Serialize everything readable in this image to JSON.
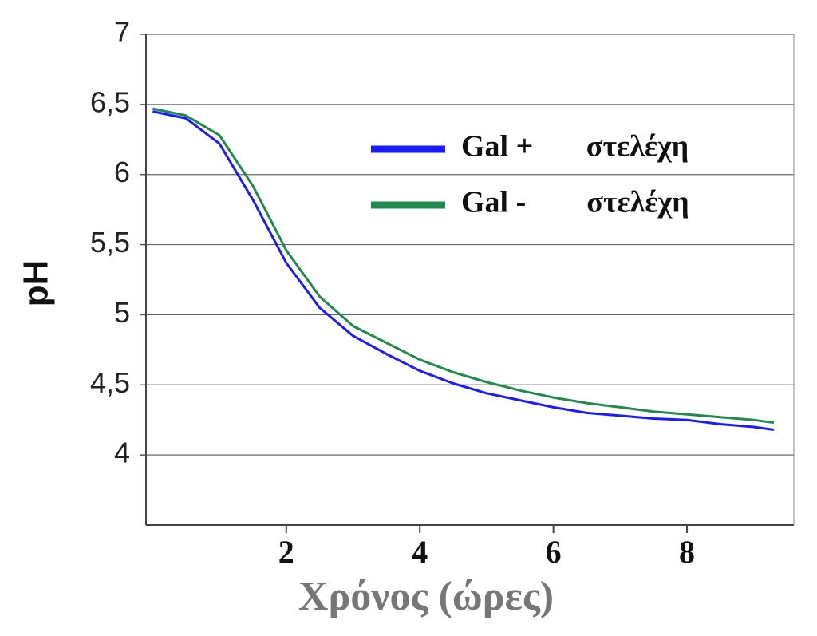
{
  "chart_data": {
    "type": "line",
    "x_label": "Χρόνος (ώρες)",
    "y_label": "pH",
    "x": [
      0,
      0.5,
      1,
      1.5,
      2,
      2.5,
      3,
      3.5,
      4,
      4.5,
      5,
      5.5,
      6,
      6.5,
      7,
      7.5,
      8,
      8.5,
      9,
      9.3
    ],
    "series": [
      {
        "name": "Gal +       στελέχη",
        "color": "#1a1aff",
        "values": [
          6.45,
          6.4,
          6.22,
          5.82,
          5.37,
          5.05,
          4.85,
          4.72,
          4.6,
          4.51,
          4.44,
          4.39,
          4.34,
          4.3,
          4.28,
          4.26,
          4.25,
          4.22,
          4.2,
          4.18
        ]
      },
      {
        "name": "Gal -        στελέχη",
        "color": "#1f8a4c",
        "values": [
          6.47,
          6.42,
          6.28,
          5.92,
          5.46,
          5.13,
          4.92,
          4.8,
          4.68,
          4.59,
          4.52,
          4.46,
          4.41,
          4.37,
          4.34,
          4.31,
          4.29,
          4.27,
          4.25,
          4.23
        ]
      }
    ],
    "xlim": [
      -0.1,
      9.6
    ],
    "ylim": [
      3.5,
      7
    ],
    "xticks": [
      2,
      4,
      6,
      8
    ],
    "yticks": [
      4,
      {
        "value": 4.5,
        "label": "4,5"
      },
      5,
      {
        "value": 5.5,
        "label": "5,5"
      },
      6,
      {
        "value": 6.5,
        "label": "6,5"
      },
      7
    ],
    "grid": true,
    "legend": "upper right"
  }
}
